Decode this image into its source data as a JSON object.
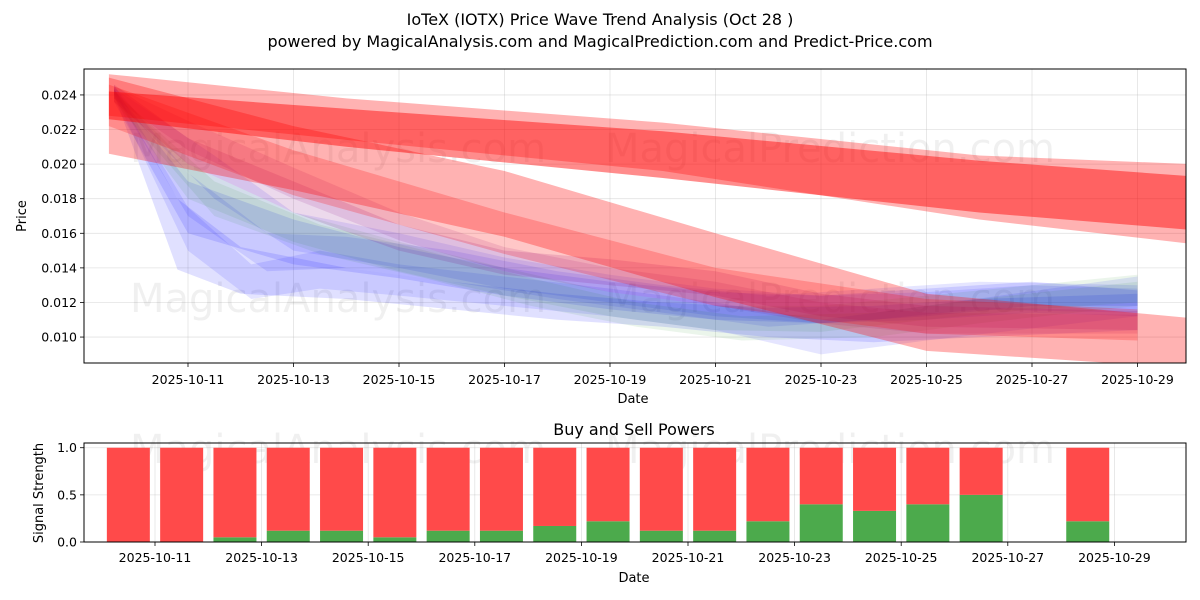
{
  "chart_data": [
    {
      "type": "area",
      "title": "IoTeX (IOTX) Price Wave Trend Analysis (Oct 28 )",
      "subtitle": "powered by MagicalAnalysis.com and MagicalPrediction.com and Predict-Price.com",
      "xlabel": "Date",
      "ylabel": "Price",
      "ylim": [
        0.0085,
        0.0255
      ],
      "yticks": [
        "0.010",
        "0.012",
        "0.014",
        "0.016",
        "0.018",
        "0.020",
        "0.022",
        "0.024"
      ],
      "xticks": [
        "2025-10-11",
        "2025-10-13",
        "2025-10-15",
        "2025-10-17",
        "2025-10-19",
        "2025-10-21",
        "2025-10-23",
        "2025-10-25",
        "2025-10-27",
        "2025-10-29"
      ],
      "grid": true,
      "watermarks": [
        "MagicalAnalysis.com",
        "MagicalPrediction.com",
        "MagicalAnalysis.com",
        "MagicalPrediction.com"
      ],
      "colors": {
        "red": "#ff0000",
        "blue": "#0000ff",
        "green": "#008000"
      },
      "red_bands": [
        {
          "name": "red-band-upper-long",
          "color": "#ff0000",
          "opacity": 0.3,
          "points": [
            [
              9.5,
              0.0252,
              0.0228
            ],
            [
              14,
              0.0238,
              0.0214
            ],
            [
              20,
              0.0224,
              0.0196
            ],
            [
              26,
              0.0205,
              0.0168
            ],
            [
              30,
              0.02,
              0.0154
            ]
          ]
        },
        {
          "name": "red-band-upper-core",
          "color": "#ff0000",
          "opacity": 0.45,
          "points": [
            [
              9.5,
              0.0242,
              0.0226
            ],
            [
              14,
              0.0232,
              0.021
            ],
            [
              20,
              0.0219,
              0.0192
            ],
            [
              26,
              0.0202,
              0.0172
            ],
            [
              30,
              0.0193,
              0.0162
            ]
          ]
        },
        {
          "name": "red-band-lower-long",
          "color": "#ff0000",
          "opacity": 0.3,
          "points": [
            [
              9.5,
              0.025,
              0.0206
            ],
            [
              13,
              0.0222,
              0.0185
            ],
            [
              17,
              0.0196,
              0.0158
            ],
            [
              21,
              0.016,
              0.0123
            ],
            [
              25,
              0.0125,
              0.0092
            ],
            [
              30,
              0.0111,
              0.0082
            ]
          ]
        },
        {
          "name": "red-band-lower-mid",
          "color": "#ff0000",
          "opacity": 0.22,
          "points": [
            [
              9.5,
              0.0246,
              0.0222
            ],
            [
              13,
              0.0208,
              0.0182
            ],
            [
              17,
              0.0172,
              0.0148
            ],
            [
              21,
              0.014,
              0.0118
            ],
            [
              25,
              0.0122,
              0.0102
            ],
            [
              29,
              0.0116,
              0.0098
            ]
          ]
        }
      ],
      "blue_bands": [
        {
          "name": "blue-band-1",
          "color": "#0000ff",
          "opacity": 0.12,
          "points": [
            [
              9.6,
              0.0244,
              0.024
            ],
            [
              10.8,
              0.018,
              0.0139
            ],
            [
              12,
              0.0152,
              0.0125
            ],
            [
              14,
              0.014,
              0.0122
            ],
            [
              16,
              0.0132,
              0.0116
            ],
            [
              18,
              0.0125,
              0.011
            ],
            [
              20,
              0.012,
              0.0106
            ],
            [
              22,
              0.0117,
              0.01
            ],
            [
              24,
              0.0118,
              0.0097
            ],
            [
              26,
              0.0122,
              0.01
            ],
            [
              29,
              0.0125,
              0.0104
            ]
          ]
        },
        {
          "name": "blue-band-2",
          "color": "#0000ff",
          "opacity": 0.1,
          "points": [
            [
              9.6,
              0.0246,
              0.024
            ],
            [
              11,
              0.0175,
              0.015
            ],
            [
              12.2,
              0.0142,
              0.0122
            ],
            [
              13.5,
              0.015,
              0.0128
            ],
            [
              15,
              0.0142,
              0.0124
            ],
            [
              17,
              0.0135,
              0.0118
            ],
            [
              19,
              0.0128,
              0.0112
            ],
            [
              21,
              0.012,
              0.0104
            ],
            [
              23,
              0.011,
              0.009
            ],
            [
              25,
              0.0118,
              0.0098
            ],
            [
              29,
              0.0135,
              0.0112
            ]
          ]
        },
        {
          "name": "blue-band-3",
          "color": "#0000ff",
          "opacity": 0.1,
          "points": [
            [
              9.6,
              0.0245,
              0.0241
            ],
            [
              11,
              0.0195,
              0.017
            ],
            [
              12.5,
              0.016,
              0.0138
            ],
            [
              14,
              0.0158,
              0.014
            ],
            [
              16,
              0.015,
              0.0132
            ],
            [
              18,
              0.0138,
              0.0122
            ],
            [
              20,
              0.013,
              0.0114
            ],
            [
              22,
              0.0124,
              0.0106
            ],
            [
              24,
              0.0128,
              0.011
            ],
            [
              26,
              0.0132,
              0.0116
            ],
            [
              29,
              0.013,
              0.0114
            ]
          ]
        },
        {
          "name": "blue-band-4",
          "color": "#0000ff",
          "opacity": 0.1,
          "points": [
            [
              9.6,
              0.0244,
              0.0238
            ],
            [
              11.5,
              0.0205,
              0.018
            ],
            [
              13,
              0.0172,
              0.015
            ],
            [
              15,
              0.016,
              0.014
            ],
            [
              17,
              0.0146,
              0.0128
            ],
            [
              19,
              0.0136,
              0.012
            ],
            [
              21,
              0.0128,
              0.0112
            ],
            [
              23,
              0.0124,
              0.0108
            ],
            [
              25,
              0.0126,
              0.011
            ],
            [
              27,
              0.013,
              0.0114
            ],
            [
              29,
              0.0128,
              0.0112
            ]
          ]
        },
        {
          "name": "blue-band-5",
          "color": "#0000ff",
          "opacity": 0.12,
          "points": [
            [
              9.6,
              0.0243,
              0.0236
            ],
            [
              11,
              0.019,
              0.016
            ],
            [
              13,
              0.0168,
              0.0142
            ],
            [
              15,
              0.0152,
              0.0134
            ],
            [
              17,
              0.014,
              0.0124
            ],
            [
              19,
              0.0132,
              0.0116
            ],
            [
              21,
              0.0126,
              0.011
            ],
            [
              23,
              0.0124,
              0.0108
            ],
            [
              25,
              0.0128,
              0.0112
            ],
            [
              27,
              0.0132,
              0.0118
            ],
            [
              29,
              0.0127,
              0.0118
            ]
          ]
        }
      ],
      "green_bands": [
        {
          "name": "green-band-1",
          "color": "#008000",
          "opacity": 0.08,
          "points": [
            [
              9.6,
              0.0243,
              0.0238
            ],
            [
              11,
              0.02,
              0.018
            ],
            [
              13,
              0.0172,
              0.0155
            ],
            [
              15,
              0.0155,
              0.0138
            ],
            [
              17,
              0.014,
              0.0124
            ],
            [
              19,
              0.0126,
              0.0112
            ],
            [
              21,
              0.0118,
              0.0104
            ],
            [
              23,
              0.0118,
              0.0103
            ],
            [
              25,
              0.0124,
              0.011
            ],
            [
              27,
              0.013,
              0.0116
            ],
            [
              29,
              0.0136,
              0.012
            ]
          ]
        },
        {
          "name": "green-band-2",
          "color": "#008000",
          "opacity": 0.08,
          "points": [
            [
              9.6,
              0.0242,
              0.0236
            ],
            [
              11.5,
              0.019,
              0.017
            ],
            [
              13.5,
              0.0165,
              0.0148
            ],
            [
              15.5,
              0.015,
              0.0134
            ],
            [
              17.5,
              0.0134,
              0.0118
            ],
            [
              19.5,
              0.012,
              0.0106
            ],
            [
              21.5,
              0.0112,
              0.0098
            ],
            [
              24,
              0.0114,
              0.01
            ],
            [
              26,
              0.0122,
              0.0108
            ],
            [
              29,
              0.0132,
              0.0118
            ]
          ]
        }
      ],
      "purple_bands": [
        {
          "name": "purple-band-1",
          "color": "#800080",
          "opacity": 0.15,
          "points": [
            [
              9.6,
              0.0246,
              0.0236
            ],
            [
              11,
              0.0215,
              0.02
            ],
            [
              13,
              0.019,
              0.0172
            ],
            [
              15,
              0.0165,
              0.015
            ],
            [
              17,
              0.015,
              0.0136
            ],
            [
              19,
              0.0145,
              0.013
            ],
            [
              21,
              0.0138,
              0.0124
            ],
            [
              23,
              0.0125,
              0.0112
            ],
            [
              25,
              0.0118,
              0.0106
            ],
            [
              29,
              0.0115,
              0.0104
            ]
          ]
        },
        {
          "name": "purple-band-2",
          "color": "#800080",
          "opacity": 0.12,
          "points": [
            [
              9.6,
              0.0245,
              0.0238
            ],
            [
              11,
              0.0225,
              0.0208
            ],
            [
              13,
              0.0198,
              0.018
            ],
            [
              15,
              0.0172,
              0.0156
            ],
            [
              17,
              0.0152,
              0.0138
            ],
            [
              19,
              0.014,
              0.0126
            ],
            [
              21,
              0.0132,
              0.0118
            ],
            [
              23,
              0.012,
              0.0108
            ],
            [
              25,
              0.0114,
              0.0102
            ],
            [
              29,
              0.0113,
              0.0102
            ]
          ]
        }
      ]
    },
    {
      "type": "bar",
      "title": "Buy and Sell Powers",
      "xlabel": "Date",
      "ylabel": "Signal Strength",
      "ylim": [
        0,
        1.05
      ],
      "yticks": [
        "0.0",
        "0.5",
        "1.0"
      ],
      "xticks": [
        "2025-10-11",
        "2025-10-13",
        "2025-10-15",
        "2025-10-17",
        "2025-10-19",
        "2025-10-21",
        "2025-10-23",
        "2025-10-25",
        "2025-10-27",
        "2025-10-29"
      ],
      "grid": true,
      "colors": {
        "buy": "#4caa4c",
        "sell": "#ff4a4a"
      },
      "watermarks": [
        "MagicalAnalysis.com",
        "MagicalPrediction.com"
      ],
      "series": [
        {
          "name": "Buy",
          "day": [
            10.5,
            11.5,
            12.5,
            13.5,
            14.5,
            15.5,
            16.5,
            17.5,
            18.5,
            19.5,
            20.5,
            21.5,
            22.5,
            23.5,
            24.5,
            25.5,
            26.5,
            28.5
          ],
          "values": [
            0.0,
            0.0,
            0.05,
            0.12,
            0.12,
            0.05,
            0.12,
            0.12,
            0.17,
            0.22,
            0.12,
            0.12,
            0.22,
            0.4,
            0.33,
            0.4,
            0.5,
            0.22
          ]
        },
        {
          "name": "Sell",
          "day": [
            10.5,
            11.5,
            12.5,
            13.5,
            14.5,
            15.5,
            16.5,
            17.5,
            18.5,
            19.5,
            20.5,
            21.5,
            22.5,
            23.5,
            24.5,
            25.5,
            26.5,
            28.5
          ],
          "values": [
            1.0,
            1.0,
            0.95,
            0.88,
            0.88,
            0.95,
            0.88,
            0.88,
            0.83,
            0.78,
            0.88,
            0.88,
            0.78,
            0.6,
            0.67,
            0.6,
            0.5,
            0.78
          ]
        }
      ]
    }
  ]
}
